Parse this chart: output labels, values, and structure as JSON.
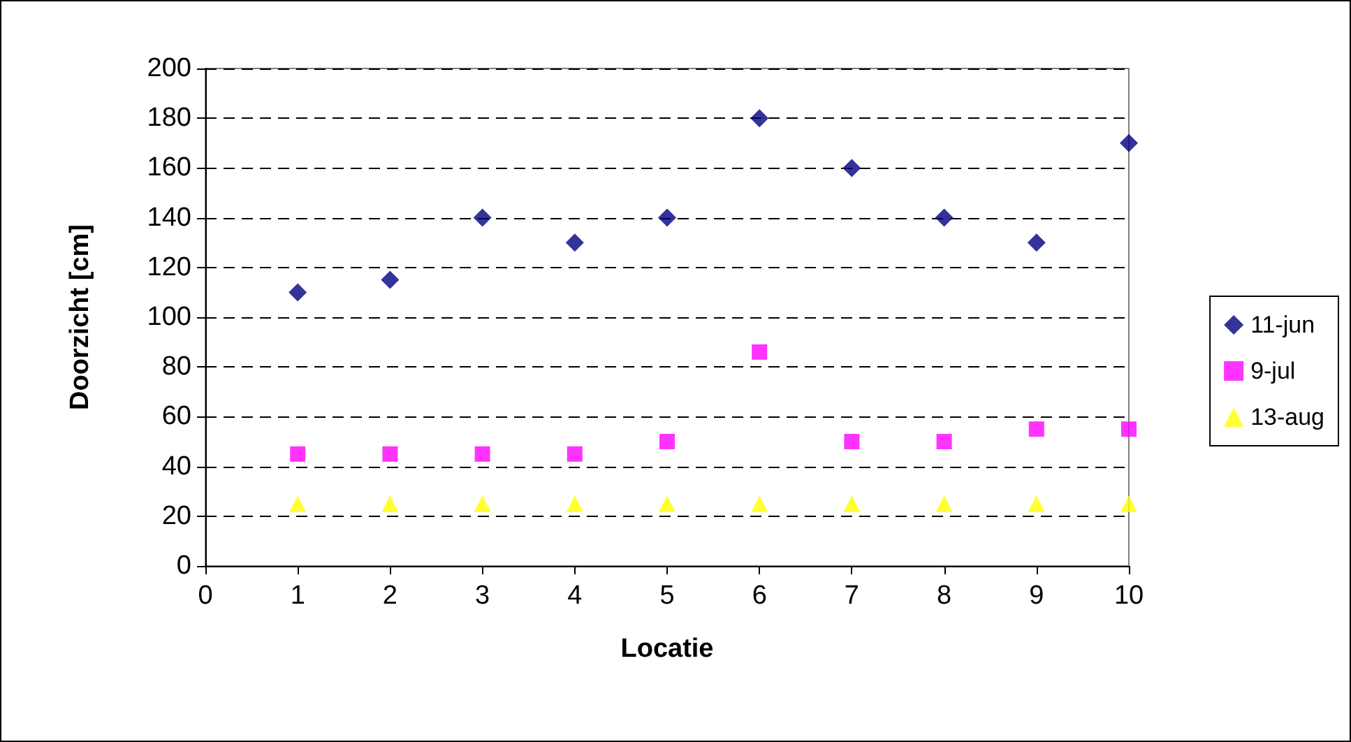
{
  "chart_data": {
    "type": "scatter",
    "xlabel": "Locatie",
    "ylabel": "Doorzicht [cm]",
    "x": [
      1,
      2,
      3,
      4,
      5,
      6,
      7,
      8,
      9,
      10
    ],
    "series": [
      {
        "name": "11-jun",
        "color": "#000080",
        "marker": "diamond",
        "values": [
          110,
          115,
          140,
          130,
          140,
          180,
          160,
          140,
          130,
          170
        ]
      },
      {
        "name": "9-jul",
        "color": "#ff00ff",
        "marker": "square",
        "values": [
          45,
          45,
          45,
          45,
          50,
          86,
          50,
          50,
          55,
          55
        ]
      },
      {
        "name": "13-aug",
        "color": "#ffff00",
        "marker": "triangle",
        "values": [
          25,
          25,
          25,
          25,
          25,
          25,
          25,
          25,
          25,
          25
        ]
      }
    ],
    "xlim": [
      0,
      10
    ],
    "xticks": [
      0,
      1,
      2,
      3,
      4,
      5,
      6,
      7,
      8,
      9,
      10
    ],
    "ylim": [
      0,
      200
    ],
    "yticks": [
      0,
      20,
      40,
      60,
      80,
      100,
      120,
      140,
      160,
      180,
      200
    ],
    "grid": "y",
    "legend": "right"
  }
}
